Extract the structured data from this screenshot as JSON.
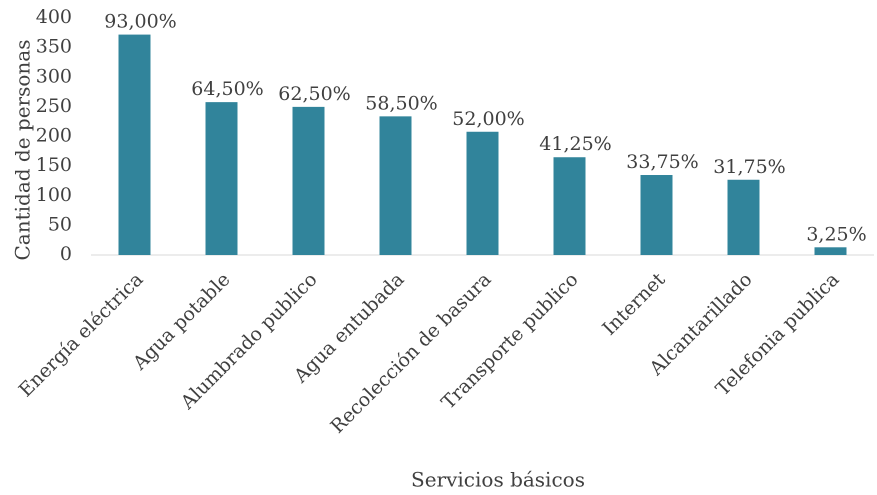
{
  "chart_data": {
    "type": "bar",
    "x_label": "Servicios básicos",
    "y_label": "Cantidad de personas",
    "categories": [
      "Energía eléctrica",
      "Agua potable",
      "Alumbrado publico",
      "Agua entubada",
      "Recolección de basura",
      "Transporte publico",
      "Internet",
      "Alcantarillado",
      "Telefonia publica"
    ],
    "values": [
      372,
      258,
      250,
      234,
      208,
      165,
      135,
      127,
      13
    ],
    "value_labels": [
      "93,00%",
      "64,50%",
      "62,50%",
      "58,50%",
      "52,00%",
      "41,25%",
      "33,75%",
      "31,75%",
      "3,25%"
    ],
    "color": "#31849b",
    "ylim": [
      0,
      400
    ],
    "yticks": [
      0,
      50,
      100,
      150,
      200,
      250,
      300,
      350,
      400
    ],
    "grid": false
  }
}
